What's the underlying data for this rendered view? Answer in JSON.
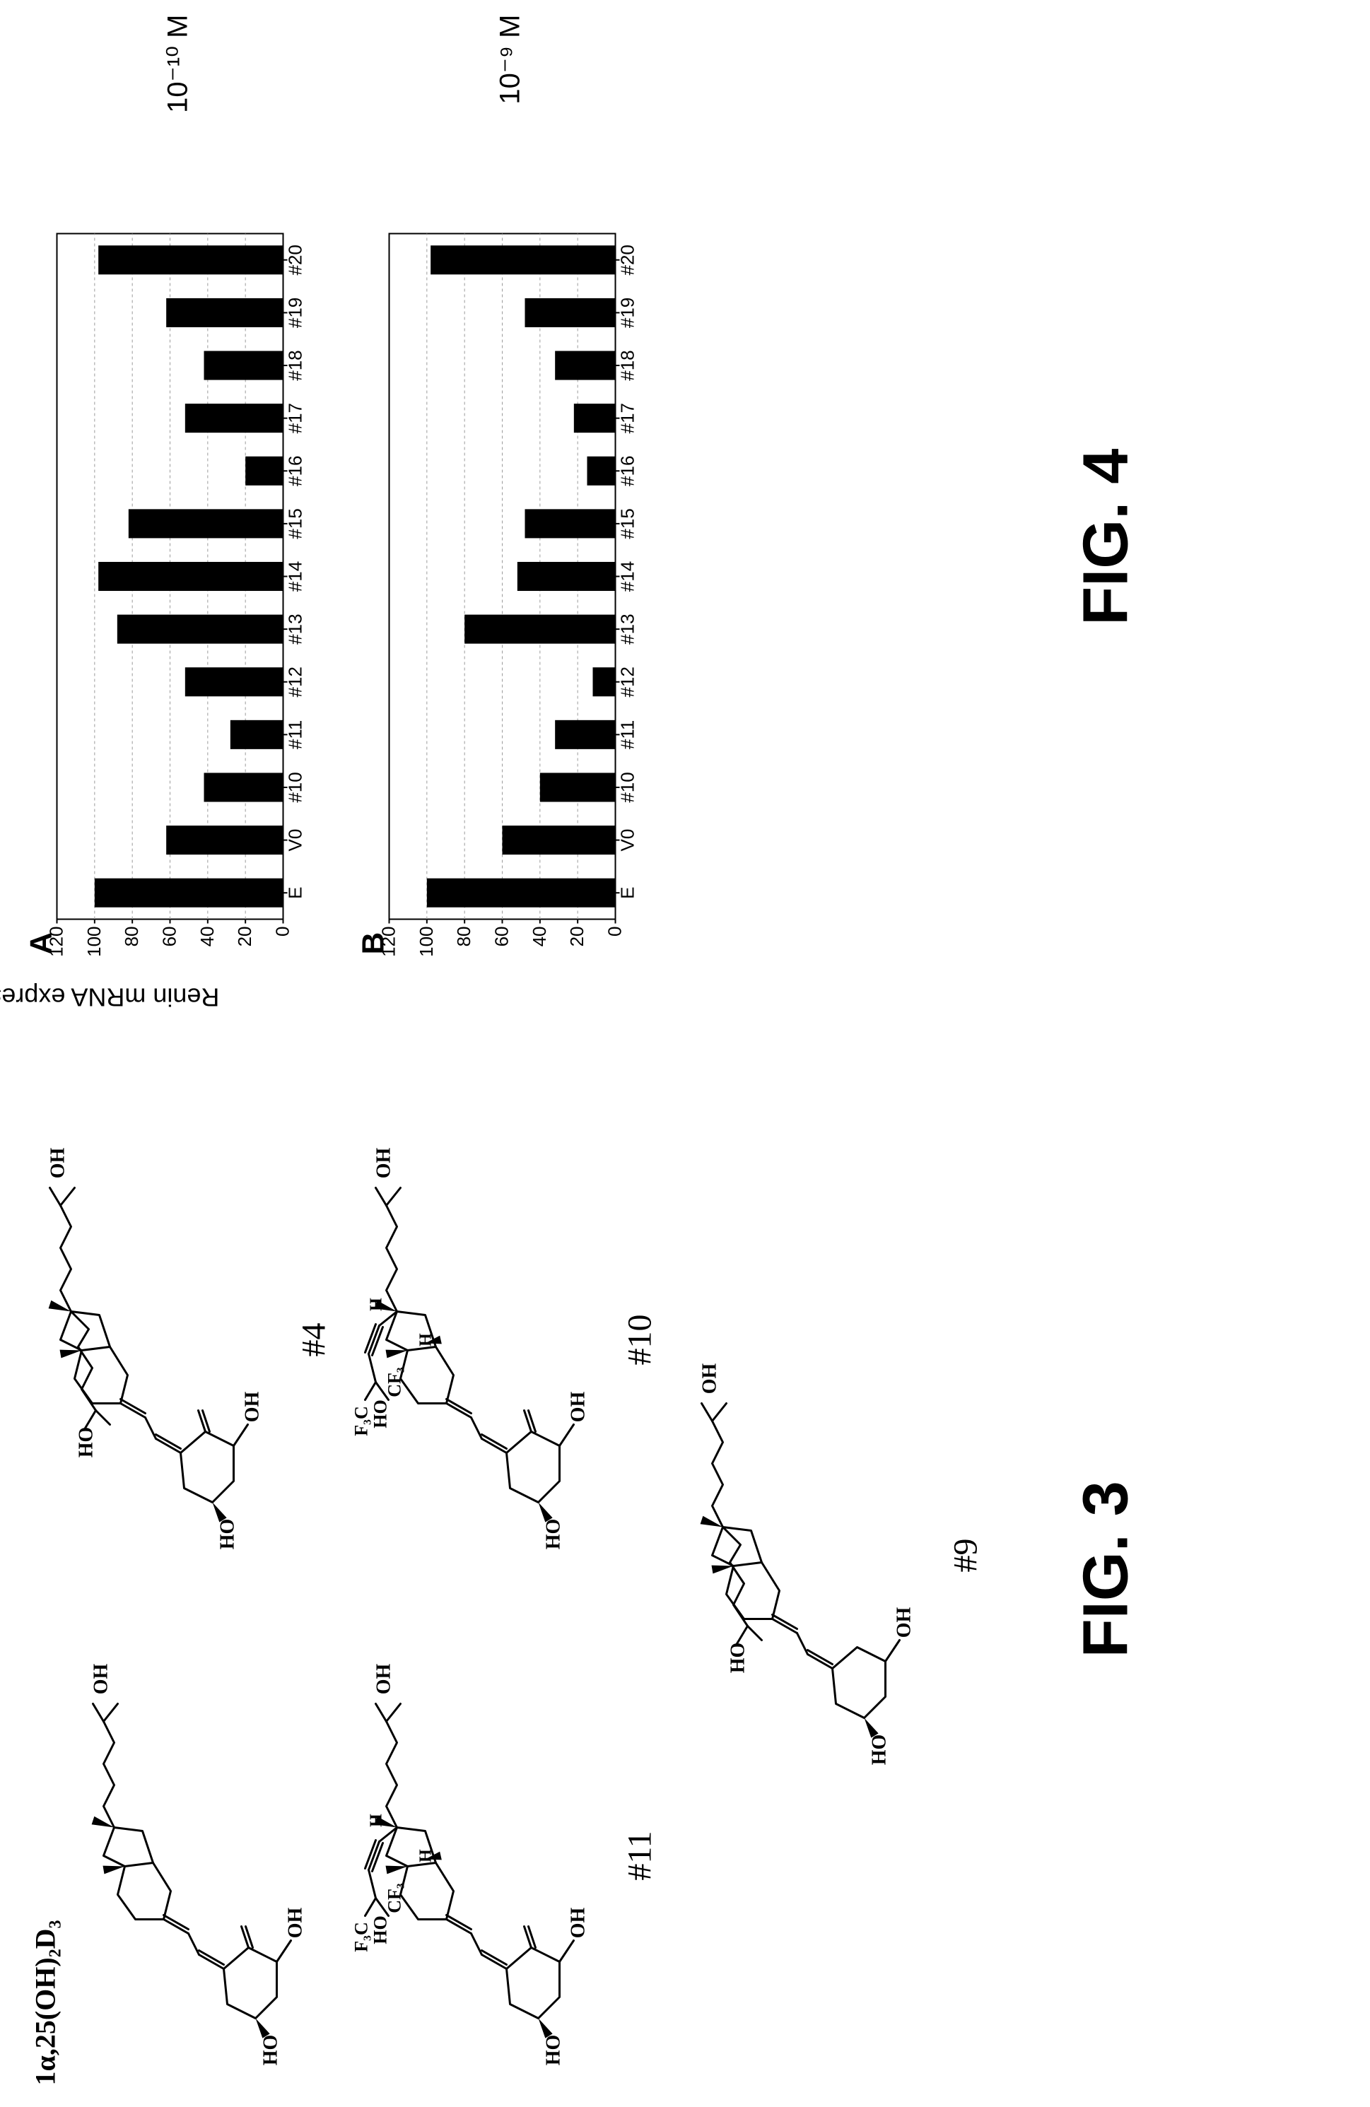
{
  "figure3": {
    "caption": "FIG. 3",
    "structures": [
      {
        "id": "s1",
        "label": "1α,25(OH)₂D₃",
        "label_position": "top"
      },
      {
        "id": "s4",
        "label": "#4",
        "label_position": "below"
      },
      {
        "id": "s11",
        "label": "#11",
        "label_position": "below"
      },
      {
        "id": "s10",
        "label": "#10",
        "label_position": "below"
      },
      {
        "id": "s9",
        "label": "#9",
        "label_position": "below"
      }
    ],
    "atom_labels": {
      "ho": "HO",
      "oh": "OH",
      "h": "H",
      "cf3": "CF₃",
      "f3c": "F₃C"
    }
  },
  "figure4": {
    "caption": "FIG. 4",
    "y_label": "Renin mRNA expression",
    "chartA": {
      "panel_label": "A",
      "concentration": "10⁻¹⁰ M",
      "categories": [
        "E",
        "V0",
        "#10",
        "#11",
        "#12",
        "#13",
        "#14",
        "#15",
        "#16",
        "#17",
        "#18",
        "#19",
        "#20"
      ],
      "values": [
        100,
        62,
        42,
        28,
        52,
        88,
        98,
        82,
        20,
        52,
        42,
        62,
        98
      ],
      "ylim": [
        0,
        120
      ],
      "ytick_step": 20,
      "bar_color": "#000000",
      "grid_color": "#9a9a9a",
      "axis_color": "#000000",
      "background": "#ffffff",
      "bar_width_ratio": 0.55,
      "tick_fontsize": 26,
      "panel_fontsize": 44
    },
    "chartB": {
      "panel_label": "B",
      "concentration": "10⁻⁹ M",
      "categories": [
        "E",
        "V0",
        "#10",
        "#11",
        "#12",
        "#13",
        "#14",
        "#15",
        "#16",
        "#17",
        "#18",
        "#19",
        "#20"
      ],
      "values": [
        100,
        60,
        40,
        32,
        12,
        80,
        52,
        48,
        15,
        22,
        32,
        48,
        98
      ],
      "ylim": [
        0,
        120
      ],
      "ytick_step": 20,
      "bar_color": "#000000",
      "grid_color": "#9a9a9a",
      "axis_color": "#000000",
      "background": "#ffffff",
      "bar_width_ratio": 0.55,
      "tick_fontsize": 26,
      "panel_fontsize": 44
    }
  }
}
